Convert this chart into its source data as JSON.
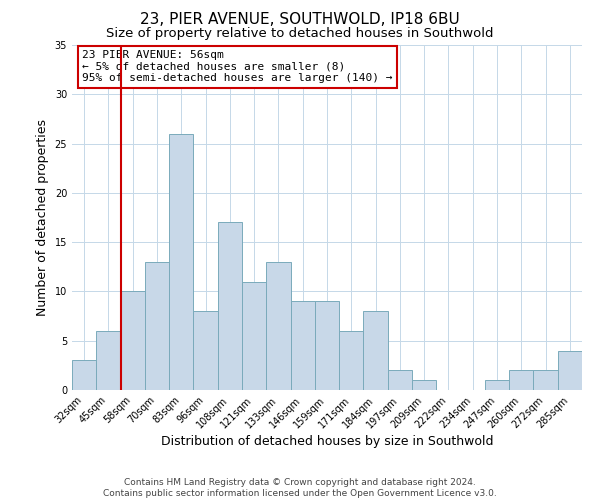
{
  "title": "23, PIER AVENUE, SOUTHWOLD, IP18 6BU",
  "subtitle": "Size of property relative to detached houses in Southwold",
  "xlabel": "Distribution of detached houses by size in Southwold",
  "ylabel": "Number of detached properties",
  "categories": [
    "32sqm",
    "45sqm",
    "58sqm",
    "70sqm",
    "83sqm",
    "96sqm",
    "108sqm",
    "121sqm",
    "133sqm",
    "146sqm",
    "159sqm",
    "171sqm",
    "184sqm",
    "197sqm",
    "209sqm",
    "222sqm",
    "234sqm",
    "247sqm",
    "260sqm",
    "272sqm",
    "285sqm"
  ],
  "values": [
    3,
    6,
    10,
    13,
    26,
    8,
    17,
    11,
    13,
    9,
    9,
    6,
    8,
    2,
    1,
    0,
    0,
    1,
    2,
    2,
    4
  ],
  "bar_color": "#c8d8e8",
  "bar_edge_color": "#7aaabb",
  "ylim": [
    0,
    35
  ],
  "yticks": [
    0,
    5,
    10,
    15,
    20,
    25,
    30,
    35
  ],
  "vline_index": 2,
  "vline_color": "#cc0000",
  "annotation_title": "23 PIER AVENUE: 56sqm",
  "annotation_line1": "← 5% of detached houses are smaller (8)",
  "annotation_line2": "95% of semi-detached houses are larger (140) →",
  "annotation_box_color": "#ffffff",
  "annotation_box_edge": "#cc0000",
  "footer_line1": "Contains HM Land Registry data © Crown copyright and database right 2024.",
  "footer_line2": "Contains public sector information licensed under the Open Government Licence v3.0.",
  "background_color": "#ffffff",
  "grid_color": "#c5d8e8",
  "title_fontsize": 11,
  "subtitle_fontsize": 9.5,
  "ylabel_fontsize": 9,
  "xlabel_fontsize": 9,
  "tick_fontsize": 7,
  "annotation_fontsize": 8,
  "footer_fontsize": 6.5
}
